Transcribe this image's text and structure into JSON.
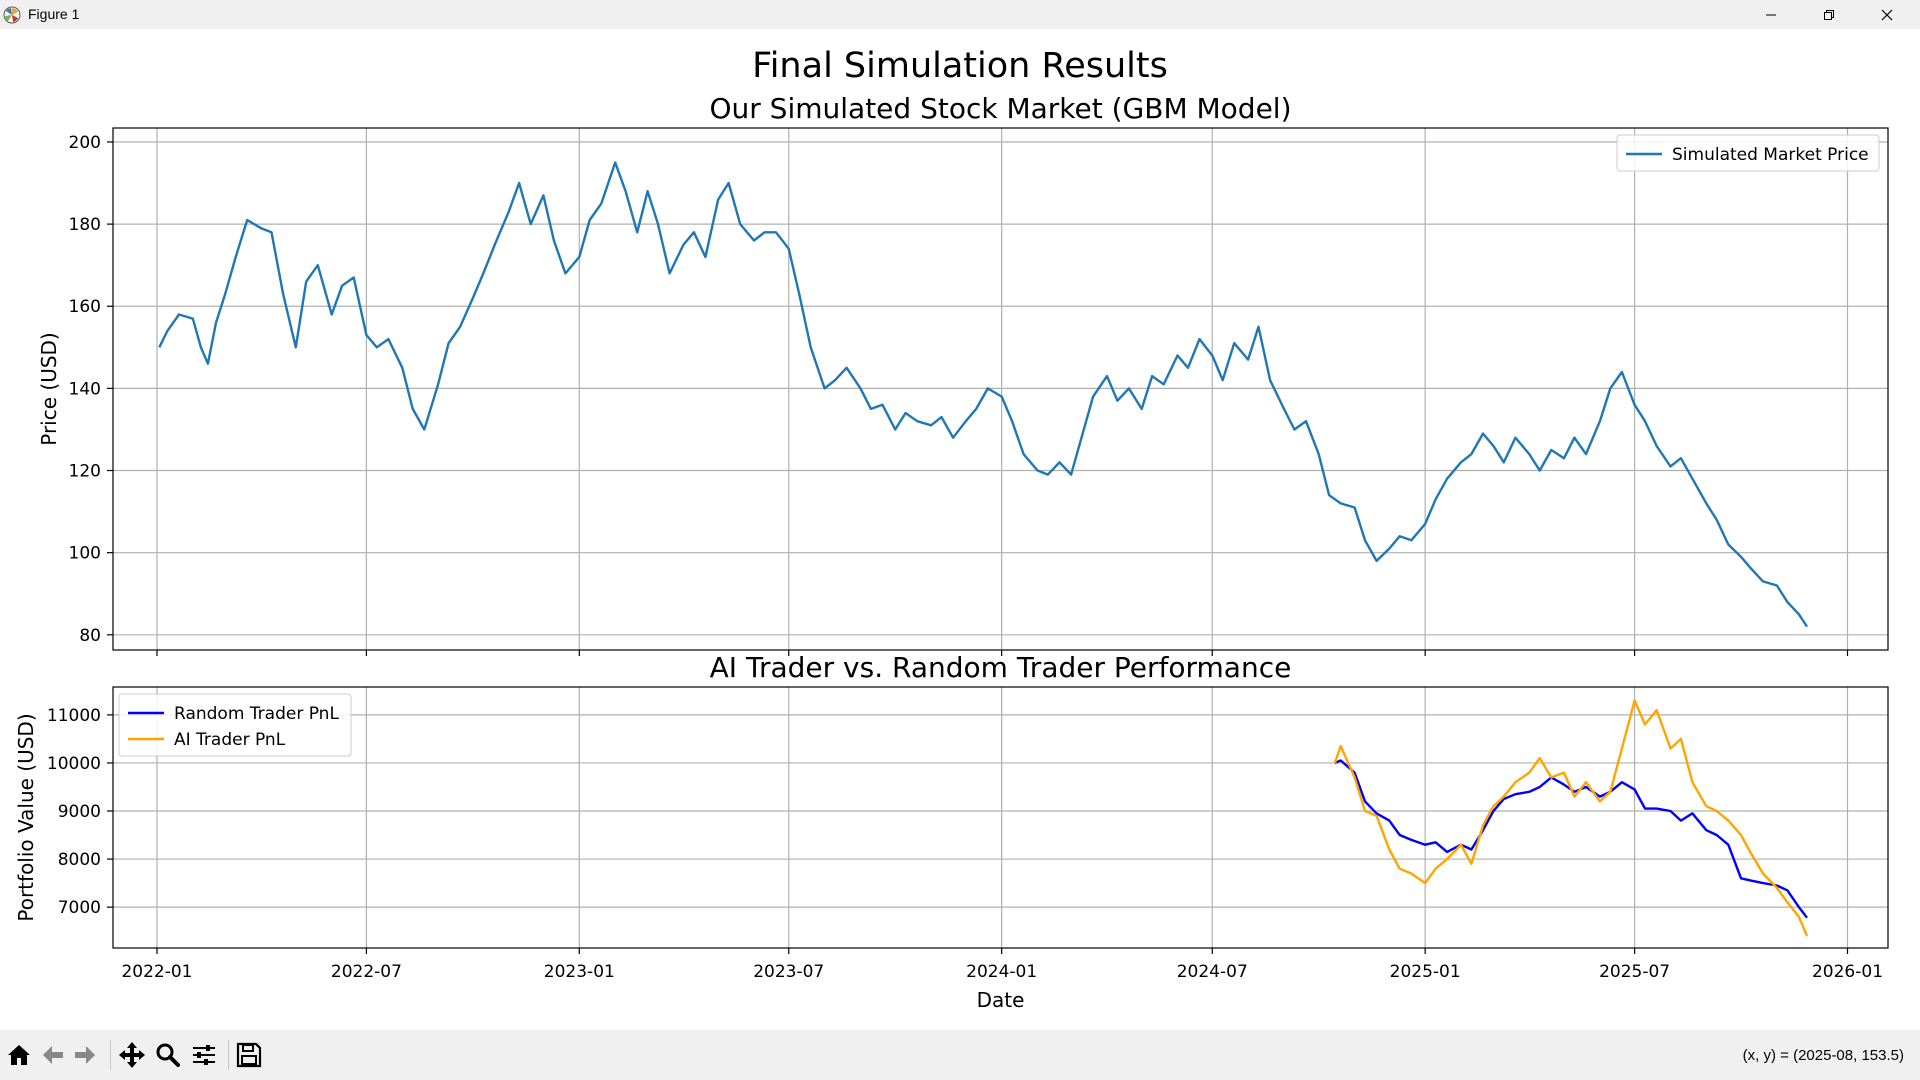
{
  "window": {
    "title": "Figure 1"
  },
  "figure": {
    "suptitle": "Final Simulation Results"
  },
  "status": {
    "coords": "(x, y) = (2025-08, 153.5)"
  },
  "chart_data": [
    {
      "type": "line",
      "title": "Our Simulated Stock Market (GBM Model)",
      "xlabel": "",
      "ylabel": "Price (USD)",
      "xlim": [
        "2021-11-24",
        "2026-02-05"
      ],
      "ylim": [
        76.3,
        203.4
      ],
      "yticks": [
        80,
        100,
        120,
        140,
        160,
        180,
        200
      ],
      "xticks": [
        "2022-01",
        "2022-07",
        "2023-01",
        "2023-07",
        "2024-01",
        "2024-07",
        "2025-01",
        "2025-07",
        "2026-01"
      ],
      "grid": true,
      "legend_position": "top-right",
      "series": [
        {
          "name": "Simulated Market Price",
          "color": "#1f77b4",
          "x": [
            "2022-01-03",
            "2022-01-10",
            "2022-01-20",
            "2022-02-01",
            "2022-02-08",
            "2022-02-14",
            "2022-02-21",
            "2022-03-01",
            "2022-03-10",
            "2022-03-20",
            "2022-04-01",
            "2022-04-10",
            "2022-04-20",
            "2022-05-01",
            "2022-05-10",
            "2022-05-20",
            "2022-06-01",
            "2022-06-10",
            "2022-06-20",
            "2022-07-01",
            "2022-07-10",
            "2022-07-20",
            "2022-08-01",
            "2022-08-10",
            "2022-08-20",
            "2022-09-01",
            "2022-09-10",
            "2022-09-20",
            "2022-10-01",
            "2022-10-10",
            "2022-10-20",
            "2022-11-01",
            "2022-11-10",
            "2022-11-20",
            "2022-12-01",
            "2022-12-10",
            "2022-12-20",
            "2023-01-01",
            "2023-01-10",
            "2023-01-20",
            "2023-02-01",
            "2023-02-10",
            "2023-02-20",
            "2023-03-01",
            "2023-03-10",
            "2023-03-20",
            "2023-04-01",
            "2023-04-10",
            "2023-04-20",
            "2023-05-01",
            "2023-05-10",
            "2023-05-20",
            "2023-06-01",
            "2023-06-10",
            "2023-06-20",
            "2023-07-01",
            "2023-07-10",
            "2023-07-20",
            "2023-08-01",
            "2023-08-10",
            "2023-08-20",
            "2023-09-01",
            "2023-09-10",
            "2023-09-20",
            "2023-10-01",
            "2023-10-10",
            "2023-10-20",
            "2023-11-01",
            "2023-11-10",
            "2023-11-20",
            "2023-12-01",
            "2023-12-10",
            "2023-12-20",
            "2024-01-01",
            "2024-01-10",
            "2024-01-20",
            "2024-02-01",
            "2024-02-10",
            "2024-02-20",
            "2024-03-01",
            "2024-03-10",
            "2024-03-20",
            "2024-04-01",
            "2024-04-10",
            "2024-04-20",
            "2024-05-01",
            "2024-05-10",
            "2024-05-20",
            "2024-06-01",
            "2024-06-10",
            "2024-06-20",
            "2024-07-01",
            "2024-07-10",
            "2024-07-20",
            "2024-08-01",
            "2024-08-10",
            "2024-08-20",
            "2024-09-01",
            "2024-09-10",
            "2024-09-20",
            "2024-10-01",
            "2024-10-10",
            "2024-10-20",
            "2024-11-01",
            "2024-11-10",
            "2024-11-20",
            "2024-12-01",
            "2024-12-10",
            "2024-12-20",
            "2025-01-01",
            "2025-01-10",
            "2025-01-20",
            "2025-02-01",
            "2025-02-10",
            "2025-02-20",
            "2025-03-01",
            "2025-03-10",
            "2025-03-20",
            "2025-04-01",
            "2025-04-10",
            "2025-04-20",
            "2025-05-01",
            "2025-05-10",
            "2025-05-20",
            "2025-06-01",
            "2025-06-10",
            "2025-06-20",
            "2025-07-01",
            "2025-07-10",
            "2025-07-20",
            "2025-08-01",
            "2025-08-10",
            "2025-08-20",
            "2025-09-01",
            "2025-09-10",
            "2025-09-20",
            "2025-10-01",
            "2025-10-10",
            "2025-10-20",
            "2025-11-01",
            "2025-11-10",
            "2025-11-20",
            "2025-11-27"
          ],
          "values": [
            150,
            154,
            158,
            157,
            150,
            146,
            156,
            163,
            172,
            181,
            179,
            178,
            163,
            150,
            166,
            170,
            158,
            165,
            167,
            153,
            150,
            152,
            145,
            135,
            130,
            141,
            151,
            155,
            162,
            168,
            175,
            183,
            190,
            180,
            187,
            176,
            168,
            172,
            181,
            185,
            195,
            188,
            178,
            188,
            180,
            168,
            175,
            178,
            172,
            186,
            190,
            180,
            176,
            178,
            178,
            174,
            163,
            150,
            140,
            142,
            145,
            140,
            135,
            136,
            130,
            134,
            132,
            131,
            133,
            128,
            132,
            135,
            140,
            138,
            132,
            124,
            120,
            119,
            122,
            119,
            128,
            138,
            143,
            137,
            140,
            135,
            143,
            141,
            148,
            145,
            152,
            148,
            142,
            151,
            147,
            155,
            142,
            135,
            130,
            132,
            124,
            114,
            112,
            111,
            103,
            98,
            101,
            104,
            103,
            107,
            113,
            118,
            122,
            124,
            129,
            126,
            122,
            128,
            124,
            120,
            125,
            123,
            128,
            124,
            132,
            140,
            144,
            136,
            132,
            126,
            121,
            123,
            118,
            112,
            108,
            102,
            99,
            96,
            93,
            92,
            88,
            85,
            82
          ]
        }
      ]
    },
    {
      "type": "line",
      "title": "AI Trader vs. Random Trader Performance",
      "xlabel": "Date",
      "ylabel": "Portfolio Value (USD)",
      "xlim": [
        "2021-11-24",
        "2026-02-05"
      ],
      "ylim": [
        6150,
        11580
      ],
      "yticks": [
        7000,
        8000,
        9000,
        10000,
        11000
      ],
      "xticks": [
        "2022-01",
        "2022-07",
        "2023-01",
        "2023-07",
        "2024-01",
        "2024-07",
        "2025-01",
        "2025-07",
        "2026-01"
      ],
      "grid": true,
      "legend_position": "top-left",
      "series": [
        {
          "name": "Random Trader PnL",
          "color": "#0000ff",
          "x": [
            "2024-10-15",
            "2024-10-20",
            "2024-11-01",
            "2024-11-10",
            "2024-11-20",
            "2024-12-01",
            "2024-12-10",
            "2024-12-20",
            "2025-01-01",
            "2025-01-10",
            "2025-01-20",
            "2025-02-01",
            "2025-02-10",
            "2025-02-20",
            "2025-03-01",
            "2025-03-10",
            "2025-03-20",
            "2025-04-01",
            "2025-04-10",
            "2025-04-20",
            "2025-05-01",
            "2025-05-10",
            "2025-05-20",
            "2025-06-01",
            "2025-06-10",
            "2025-06-20",
            "2025-07-01",
            "2025-07-10",
            "2025-07-20",
            "2025-08-01",
            "2025-08-10",
            "2025-08-20",
            "2025-09-01",
            "2025-09-10",
            "2025-09-20",
            "2025-10-01",
            "2025-10-10",
            "2025-10-20",
            "2025-11-01",
            "2025-11-10",
            "2025-11-20",
            "2025-11-27"
          ],
          "values": [
            10000,
            10050,
            9800,
            9200,
            8950,
            8800,
            8500,
            8400,
            8300,
            8350,
            8150,
            8300,
            8200,
            8600,
            9000,
            9250,
            9350,
            9400,
            9500,
            9700,
            9550,
            9400,
            9500,
            9300,
            9400,
            9600,
            9450,
            9050,
            9050,
            9000,
            8800,
            8950,
            8600,
            8500,
            8300,
            7600,
            7550,
            7500,
            7450,
            7350,
            7000,
            6780
          ]
        },
        {
          "name": "AI Trader PnL",
          "color": "#ffa500",
          "x": [
            "2024-10-15",
            "2024-10-20",
            "2024-11-01",
            "2024-11-10",
            "2024-11-20",
            "2024-12-01",
            "2024-12-10",
            "2024-12-20",
            "2025-01-01",
            "2025-01-10",
            "2025-01-20",
            "2025-02-01",
            "2025-02-10",
            "2025-02-20",
            "2025-03-01",
            "2025-03-10",
            "2025-03-20",
            "2025-04-01",
            "2025-04-10",
            "2025-04-20",
            "2025-05-01",
            "2025-05-10",
            "2025-05-20",
            "2025-06-01",
            "2025-06-10",
            "2025-06-20",
            "2025-07-01",
            "2025-07-10",
            "2025-07-20",
            "2025-08-01",
            "2025-08-10",
            "2025-08-20",
            "2025-09-01",
            "2025-09-10",
            "2025-09-20",
            "2025-10-01",
            "2025-10-10",
            "2025-10-20",
            "2025-11-01",
            "2025-11-10",
            "2025-11-20",
            "2025-11-27"
          ],
          "values": [
            10000,
            10350,
            9700,
            9000,
            8900,
            8200,
            7800,
            7700,
            7500,
            7800,
            8000,
            8300,
            7900,
            8700,
            9100,
            9300,
            9600,
            9800,
            10100,
            9700,
            9800,
            9300,
            9600,
            9200,
            9400,
            10300,
            11300,
            10800,
            11100,
            10300,
            10500,
            9600,
            9100,
            9000,
            8800,
            8500,
            8100,
            7700,
            7400,
            7100,
            6800,
            6400
          ]
        }
      ]
    }
  ]
}
